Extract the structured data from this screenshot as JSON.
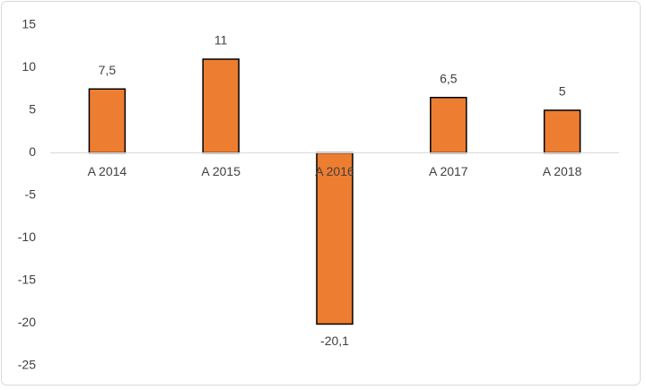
{
  "chart_data": {
    "type": "bar",
    "categories": [
      "A 2014",
      "A 2015",
      "A 2016",
      "A 2017",
      "A 2018"
    ],
    "values": [
      7.5,
      11,
      -20.1,
      6.5,
      5
    ],
    "value_labels": [
      "7,5",
      "11",
      "-20,1",
      "6,5",
      "5"
    ],
    "color": "#ed7d31",
    "ylim": [
      -25,
      15
    ],
    "yticks": [
      -25,
      -20,
      -15,
      -10,
      -5,
      0,
      5,
      10,
      15
    ],
    "grid": false
  }
}
